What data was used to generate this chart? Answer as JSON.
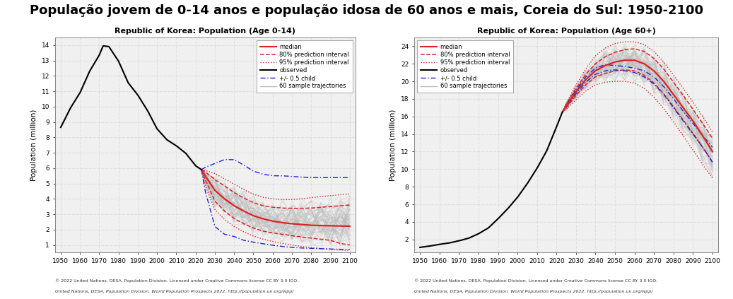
{
  "title": "População jovem de 0-14 anos e população idosa de 60 anos e mais, Coreia do Sul: 1950-2100",
  "left_subtitle": "Republic of Korea: Population (Age 0-14)",
  "right_subtitle": "Republic of Korea: Population (Age 60+)",
  "ylabel": "Population (million)",
  "footnote_line1": "© 2022 United Nations, DESA, Population Division. Licensed under Creative Commons license CC BY 3.0 IGO.",
  "footnote_line2": "United Nations, DESA, Population Division. World Population Prospects 2022. http://population.un.org/wpp/",
  "left_ylim": [
    0.5,
    14.5
  ],
  "right_ylim": [
    0.5,
    25.0
  ],
  "xlim": [
    1947,
    2103
  ],
  "xticks": [
    1950,
    1960,
    1970,
    1980,
    1990,
    2000,
    2010,
    2020,
    2030,
    2040,
    2050,
    2060,
    2070,
    2080,
    2090,
    2100
  ],
  "left_yticks": [
    1,
    2,
    3,
    4,
    5,
    6,
    7,
    8,
    9,
    10,
    11,
    12,
    13,
    14
  ],
  "right_yticks": [
    2,
    4,
    6,
    8,
    10,
    12,
    14,
    16,
    18,
    20,
    22,
    24
  ],
  "obs_color": "#000000",
  "median_color": "#dd2222",
  "pi80_color": "#dd2222",
  "pi95_color": "#dd2222",
  "halfchild_color": "#2222cc",
  "sample_color": "#bbbbbb",
  "grid_color": "#dddddd",
  "background_color": "#f0f0f0",
  "obs_years_L": [
    1950,
    1955,
    1960,
    1965,
    1970,
    1972,
    1975,
    1980,
    1985,
    1990,
    1995,
    2000,
    2005,
    2010,
    2015,
    2020,
    2023
  ],
  "obs_vals_L": [
    8.65,
    9.9,
    10.9,
    12.3,
    13.35,
    13.95,
    13.9,
    12.95,
    11.55,
    10.75,
    9.75,
    8.55,
    7.85,
    7.45,
    6.95,
    6.15,
    5.9
  ],
  "proj_years_L": [
    2023,
    2025,
    2030,
    2035,
    2040,
    2045,
    2050,
    2055,
    2060,
    2065,
    2070,
    2075,
    2080,
    2085,
    2090,
    2095,
    2100
  ],
  "median_L": [
    5.9,
    5.5,
    4.55,
    4.0,
    3.55,
    3.2,
    2.9,
    2.7,
    2.55,
    2.45,
    2.38,
    2.33,
    2.28,
    2.26,
    2.25,
    2.24,
    2.22
  ],
  "pi80u_L": [
    5.9,
    5.75,
    5.25,
    4.85,
    4.4,
    4.05,
    3.75,
    3.55,
    3.45,
    3.4,
    3.38,
    3.38,
    3.4,
    3.45,
    3.5,
    3.55,
    3.6
  ],
  "pi80l_L": [
    5.9,
    5.25,
    3.85,
    3.2,
    2.72,
    2.38,
    2.1,
    1.9,
    1.78,
    1.7,
    1.6,
    1.52,
    1.44,
    1.38,
    1.3,
    1.1,
    1.0
  ],
  "pi95u_L": [
    5.9,
    5.85,
    5.65,
    5.3,
    4.95,
    4.6,
    4.3,
    4.1,
    4.0,
    3.95,
    3.95,
    4.0,
    4.08,
    4.15,
    4.2,
    4.28,
    4.32
  ],
  "pi95l_L": [
    5.9,
    4.85,
    3.3,
    2.65,
    2.2,
    1.85,
    1.58,
    1.38,
    1.22,
    1.1,
    1.0,
    0.9,
    0.82,
    0.76,
    0.72,
    0.68,
    0.65
  ],
  "halfu_L": [
    5.9,
    6.05,
    6.3,
    6.55,
    6.55,
    6.2,
    5.8,
    5.6,
    5.5,
    5.5,
    5.45,
    5.42,
    5.38,
    5.38,
    5.38,
    5.38,
    5.38
  ],
  "halfl_L": [
    5.9,
    4.5,
    2.2,
    1.7,
    1.55,
    1.3,
    1.18,
    1.08,
    0.98,
    0.9,
    0.84,
    0.8,
    0.78,
    0.76,
    0.74,
    0.72,
    0.7
  ],
  "obs_years_R": [
    1950,
    1955,
    1960,
    1965,
    1970,
    1975,
    1980,
    1985,
    1990,
    1995,
    2000,
    2005,
    2010,
    2015,
    2020,
    2023
  ],
  "obs_vals_R": [
    1.1,
    1.25,
    1.45,
    1.6,
    1.85,
    2.15,
    2.65,
    3.3,
    4.35,
    5.5,
    6.8,
    8.35,
    10.1,
    12.1,
    14.8,
    16.5
  ],
  "proj_years_R": [
    2023,
    2025,
    2030,
    2035,
    2040,
    2045,
    2050,
    2055,
    2060,
    2065,
    2070,
    2075,
    2080,
    2085,
    2090,
    2095,
    2100
  ],
  "median_R": [
    16.5,
    17.2,
    18.8,
    20.2,
    21.2,
    21.8,
    22.2,
    22.4,
    22.4,
    22.0,
    21.2,
    20.0,
    18.5,
    17.0,
    15.5,
    13.8,
    12.0
  ],
  "pi80u_R": [
    16.5,
    17.4,
    19.2,
    20.8,
    22.0,
    22.8,
    23.3,
    23.6,
    23.7,
    23.4,
    22.6,
    21.4,
    19.9,
    18.4,
    16.8,
    15.2,
    13.5
  ],
  "pi80l_R": [
    16.5,
    17.0,
    18.4,
    19.6,
    20.5,
    20.9,
    21.2,
    21.3,
    21.2,
    20.7,
    19.8,
    18.6,
    17.1,
    15.6,
    14.1,
    12.5,
    10.8
  ],
  "pi95u_R": [
    16.5,
    17.5,
    19.6,
    21.4,
    22.9,
    23.8,
    24.3,
    24.5,
    24.5,
    24.2,
    23.4,
    22.2,
    20.7,
    19.2,
    17.6,
    16.0,
    14.2
  ],
  "pi95l_R": [
    16.5,
    16.8,
    17.9,
    18.9,
    19.6,
    19.9,
    20.0,
    20.0,
    19.8,
    19.2,
    18.2,
    16.9,
    15.4,
    13.8,
    12.2,
    10.5,
    9.0
  ],
  "halfu_R": [
    16.5,
    17.3,
    19.0,
    20.5,
    21.5,
    21.9,
    21.8,
    21.7,
    21.5,
    21.2,
    20.5,
    19.4,
    18.0,
    16.6,
    15.2,
    13.8,
    12.5
  ],
  "halfl_R": [
    16.5,
    17.1,
    18.6,
    19.9,
    20.8,
    21.2,
    21.3,
    21.2,
    21.0,
    20.5,
    19.7,
    18.5,
    17.0,
    15.5,
    14.0,
    12.5,
    10.8
  ]
}
